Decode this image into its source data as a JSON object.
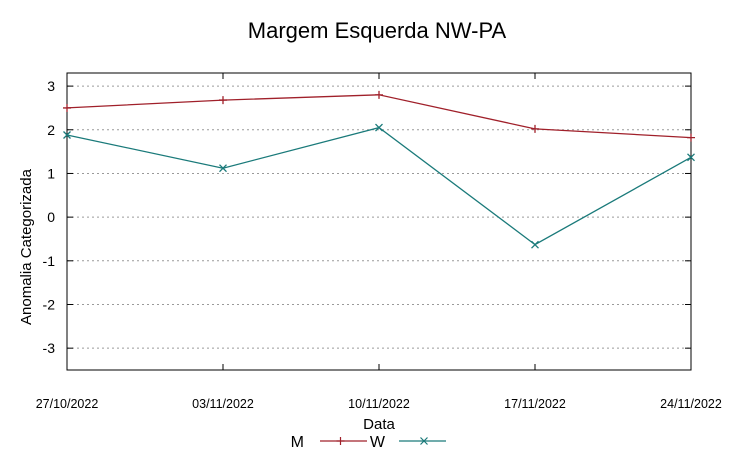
{
  "chart_data": {
    "type": "line",
    "title": "Margem Esquerda NW-PA",
    "xlabel": "Data",
    "ylabel": "Anomalia Categorizada",
    "categories": [
      "27/10/2022",
      "03/11/2022",
      "10/11/2022",
      "17/11/2022",
      "24/11/2022"
    ],
    "ylim": [
      -3.5,
      3.3
    ],
    "yticks": [
      "3",
      "2",
      "1",
      "0",
      "-1",
      "-2",
      "-3"
    ],
    "ytick_values": [
      3,
      2,
      1,
      0,
      -1,
      -2,
      -3
    ],
    "grid": true,
    "legend_position": "bottom-center",
    "series": [
      {
        "name": "M",
        "color": "#a0202a",
        "marker": "plus",
        "values": [
          2.5,
          2.68,
          2.8,
          2.02,
          1.82
        ]
      },
      {
        "name": "W",
        "color": "#1a7a7a",
        "marker": "cross",
        "values": [
          1.88,
          1.12,
          2.05,
          -0.63,
          1.37
        ]
      }
    ]
  }
}
